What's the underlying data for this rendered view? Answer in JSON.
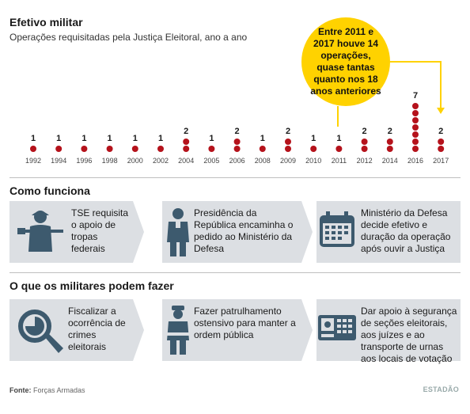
{
  "header": {
    "title": "Efetivo militar",
    "subtitle": "Operações requisitadas pela Justiça Eleitoral, ano a ano"
  },
  "callout": {
    "text": "Entre 2011 e 2017 houve 14 operações, quase tantas quanto nos 18 anos anteriores"
  },
  "chart_data": {
    "type": "scatter",
    "categories": [
      "1992",
      "1994",
      "1996",
      "1998",
      "2000",
      "2002",
      "2004",
      "2005",
      "2006",
      "2008",
      "2009",
      "2010",
      "2011",
      "2012",
      "2014",
      "2016",
      "2017"
    ],
    "values": [
      1,
      1,
      1,
      1,
      1,
      1,
      2,
      1,
      2,
      1,
      2,
      1,
      1,
      2,
      2,
      7,
      2
    ],
    "title": "Efetivo militar",
    "subtitle": "Operações requisitadas pela Justiça Eleitoral, ano a ano",
    "dot_color": "#b5121b",
    "highlight_color": "#ffd200"
  },
  "section_como": {
    "title": "Como funciona",
    "cards": [
      {
        "icon": "soldier-icon",
        "text": "TSE requisita o apoio de tropas federais"
      },
      {
        "icon": "official-icon",
        "text": "Presidência da República encaminha o pedido ao Ministério da Defesa"
      },
      {
        "icon": "calendar-icon",
        "text": "Ministério da Defesa decide efetivo e duração da operação após ouvir a Justiça"
      }
    ]
  },
  "section_oque": {
    "title": "O que os militares podem fazer",
    "cards": [
      {
        "icon": "magnifier-icon",
        "text": "Fiscalizar a ocorrência de crimes eleitorais"
      },
      {
        "icon": "police-icon",
        "text": "Fazer patrulhamento ostensivo para manter a ordem pública"
      },
      {
        "icon": "voting-machine-icon",
        "text": "Dar apoio à segurança de seções eleitorais, aos juízes e ao transporte de urnas aos locais de votação"
      }
    ]
  },
  "footer": {
    "source_label": "Fonte:",
    "source_value": "Forças Armadas",
    "brand": "ESTADÃO"
  },
  "colors": {
    "icon": "#3d5a6e",
    "card_bg": "#dcdfe3",
    "dot": "#b5121b",
    "callout": "#ffd200"
  }
}
